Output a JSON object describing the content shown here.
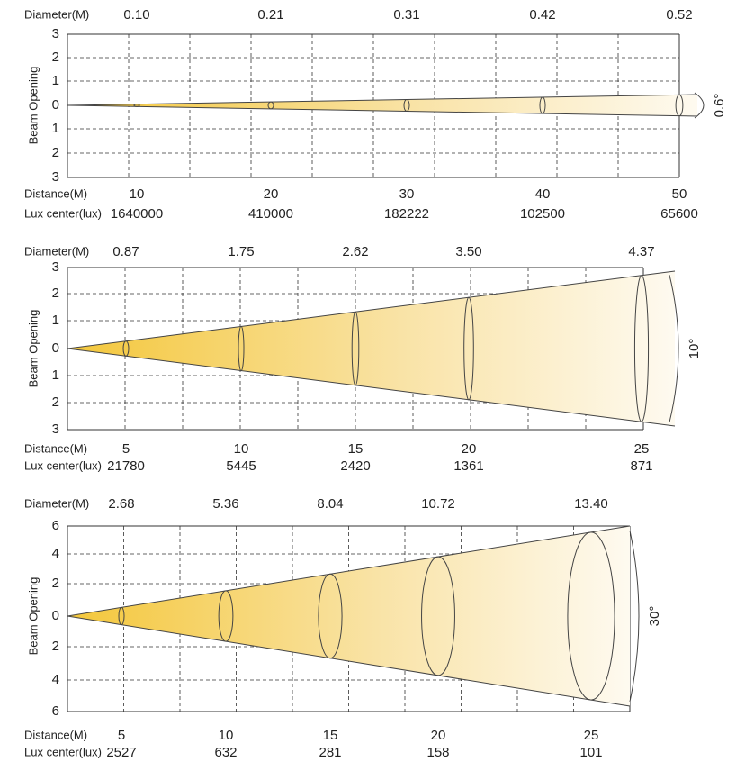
{
  "panels": [
    {
      "diameter_label": "Diameter(M)",
      "diameters": [
        "0.10",
        "0.21",
        "0.31",
        "0.42",
        "0.52"
      ],
      "axis_label": "Beam Opening",
      "ticks": [
        "3",
        "2",
        "1",
        "0",
        "1",
        "2",
        "3"
      ],
      "distance_label": "Distance(M)",
      "distances": [
        "10",
        "20",
        "30",
        "40",
        "50"
      ],
      "lux_label": "Lux center(lux)",
      "lux": [
        "1640000",
        "410000",
        "182222",
        "102500",
        "65600"
      ],
      "angle": "0.6°"
    },
    {
      "diameter_label": "Diameter(M)",
      "diameters": [
        "0.87",
        "1.75",
        "2.62",
        "3.50",
        "4.37"
      ],
      "axis_label": "Beam Opening",
      "ticks": [
        "3",
        "2",
        "1",
        "0",
        "1",
        "2",
        "3"
      ],
      "distance_label": "Distance(M)",
      "distances": [
        "5",
        "10",
        "15",
        "20",
        "25"
      ],
      "lux_label": "Lux center(lux)",
      "lux": [
        "21780",
        "5445",
        "2420",
        "1361",
        "871"
      ],
      "angle": "10°"
    },
    {
      "diameter_label": "Diameter(M)",
      "diameters": [
        "2.68",
        "5.36",
        "8.04",
        "10.72",
        "13.40"
      ],
      "axis_label": "Beam Opening",
      "ticks": [
        "6",
        "4",
        "2",
        "0",
        "2",
        "4",
        "6"
      ],
      "distance_label": "Distance(M)",
      "distances": [
        "5",
        "10",
        "15",
        "20",
        "25"
      ],
      "lux_label": "Lux center(lux)",
      "lux": [
        "2527",
        "632",
        "281",
        "158",
        "101"
      ],
      "angle": "30°"
    }
  ]
}
